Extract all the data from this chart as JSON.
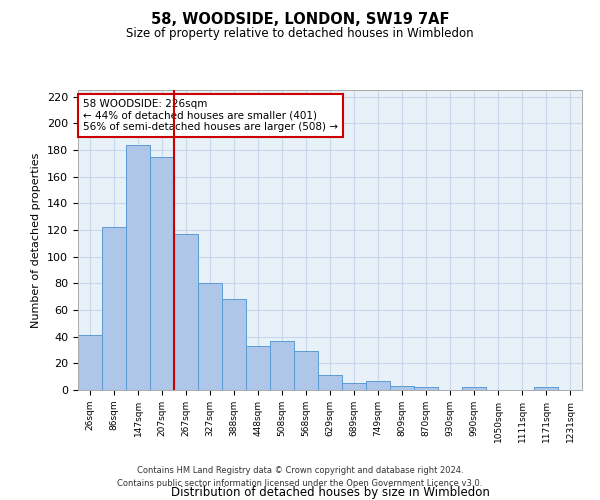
{
  "title": "58, WOODSIDE, LONDON, SW19 7AF",
  "subtitle": "Size of property relative to detached houses in Wimbledon",
  "xlabel": "Distribution of detached houses by size in Wimbledon",
  "ylabel": "Number of detached properties",
  "footer_line1": "Contains HM Land Registry data © Crown copyright and database right 2024.",
  "footer_line2": "Contains public sector information licensed under the Open Government Licence v3.0.",
  "annotation_line1": "58 WOODSIDE: 226sqm",
  "annotation_line2": "← 44% of detached houses are smaller (401)",
  "annotation_line3": "56% of semi-detached houses are larger (508) →",
  "red_line_x": 3.5,
  "categories": [
    "26sqm",
    "86sqm",
    "147sqm",
    "207sqm",
    "267sqm",
    "327sqm",
    "388sqm",
    "448sqm",
    "508sqm",
    "568sqm",
    "629sqm",
    "689sqm",
    "749sqm",
    "809sqm",
    "870sqm",
    "930sqm",
    "990sqm",
    "1050sqm",
    "1111sqm",
    "1171sqm",
    "1231sqm"
  ],
  "values": [
    41,
    122,
    184,
    175,
    117,
    80,
    68,
    33,
    37,
    29,
    11,
    5,
    7,
    3,
    2,
    0,
    2,
    0,
    0,
    2,
    0
  ],
  "bar_color": "#aec6e8",
  "bar_edge_color": "#5b9bd5",
  "red_line_color": "#cc0000",
  "background_color": "#ffffff",
  "grid_color": "#c8d8ec",
  "ylim": [
    0,
    225
  ],
  "yticks": [
    0,
    20,
    40,
    60,
    80,
    100,
    120,
    140,
    160,
    180,
    200,
    220
  ]
}
